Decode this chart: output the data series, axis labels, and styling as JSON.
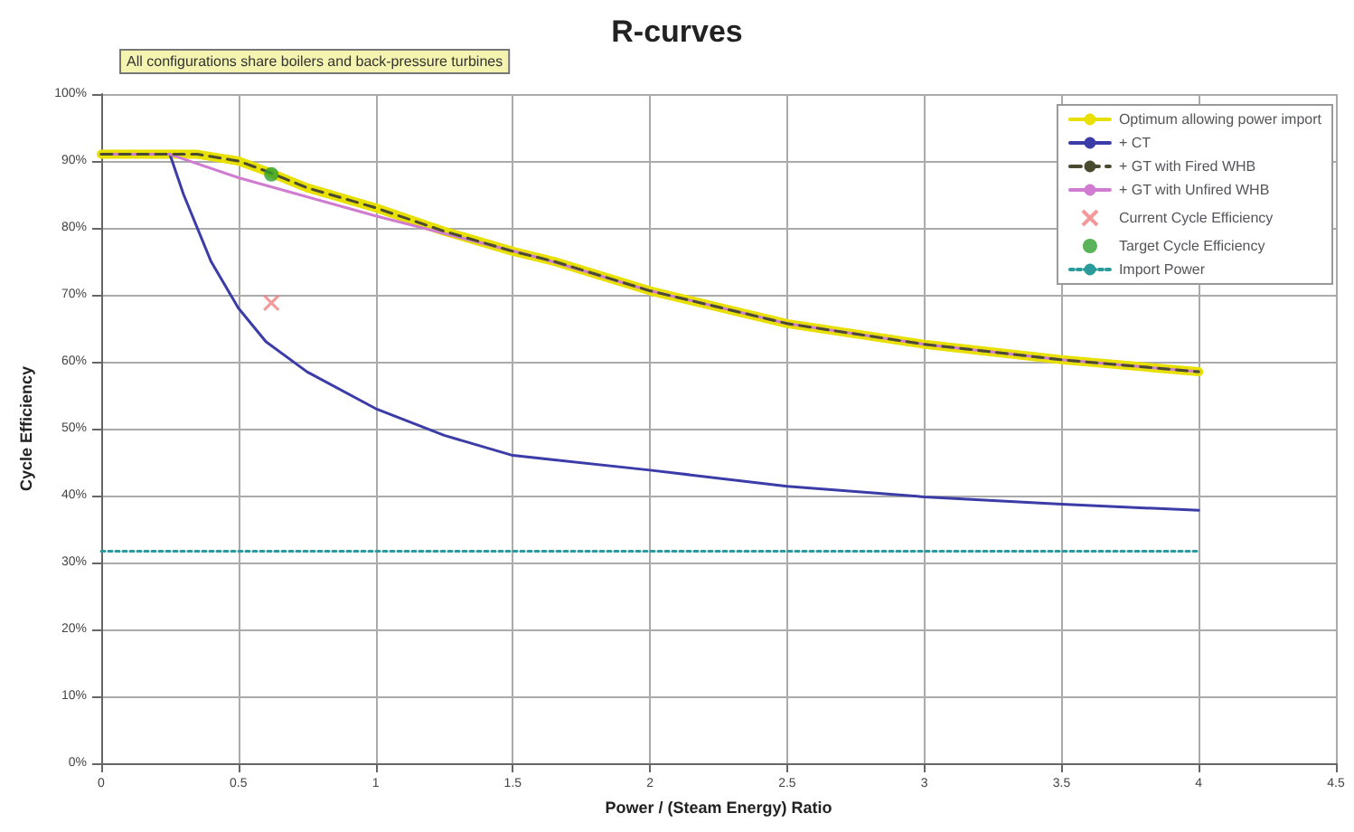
{
  "chart_data": {
    "type": "line",
    "title": "R-curves",
    "xlabel": "Power / (Steam Energy) Ratio",
    "ylabel": "Cycle Efficiency",
    "annotations": [
      "All configurations share boilers and back-pressure turbines"
    ],
    "xlim": [
      0,
      4.5
    ],
    "xticks": [
      0,
      0.5,
      1,
      1.5,
      2,
      2.5,
      3,
      3.5,
      4,
      4.5
    ],
    "ylim": [
      0,
      100
    ],
    "yticks": [
      {
        "value": 0,
        "label": "0%"
      },
      {
        "value": 10,
        "label": "10%"
      },
      {
        "value": 20,
        "label": "20%"
      },
      {
        "value": 30,
        "label": "30%"
      },
      {
        "value": 40,
        "label": "40%"
      },
      {
        "value": 50,
        "label": "50%"
      },
      {
        "value": 60,
        "label": "60%"
      },
      {
        "value": 70,
        "label": "70%"
      },
      {
        "value": 80,
        "label": "80%"
      },
      {
        "value": 90,
        "label": "90%"
      },
      {
        "value": 100,
        "label": "100%"
      }
    ],
    "grid": true,
    "legend": "top right",
    "marker": "none",
    "line_style": "solid",
    "series": [
      {
        "name": "Optimum allowing power import",
        "color": "#e8e000",
        "x": [
          0,
          0.25,
          0.35,
          0.5,
          0.6,
          0.75,
          1,
          1.25,
          1.5,
          1.65,
          2,
          2.5,
          3,
          3.5,
          4
        ],
        "values": [
          91,
          91,
          91,
          90,
          88.5,
          86,
          83,
          79.5,
          76.5,
          75,
          70.6,
          65.7,
          62.6,
          60.3,
          58.5
        ]
      },
      {
        "name": "+ CT",
        "color": "#3c3ca8",
        "x": [
          0,
          0.25,
          0.3,
          0.4,
          0.5,
          0.6,
          0.75,
          1,
          1.25,
          1.5,
          2,
          2.5,
          3,
          3.5,
          4
        ],
        "values": [
          91,
          91,
          85,
          75,
          68,
          63,
          58.5,
          53,
          49,
          46,
          43.8,
          41.4,
          39.8,
          38.7,
          37.8
        ]
      },
      {
        "name": "+ GT with Fired WHB",
        "color": "#4a4a30",
        "line_style": "dashed",
        "x": [
          0,
          0.25,
          0.35,
          0.5,
          0.6,
          0.75,
          1,
          1.25,
          1.5,
          1.65,
          2,
          2.5,
          3,
          3.5,
          4
        ],
        "values": [
          91,
          91,
          91,
          90,
          88.5,
          86,
          83,
          79.5,
          76.5,
          75,
          70.6,
          65.7,
          62.6,
          60.3,
          58.5
        ]
      },
      {
        "name": "+ GT with Unfired WHB",
        "color": "#d07cd0",
        "x": [
          0,
          0.25,
          0.5,
          1,
          1.6,
          2,
          2.5,
          3,
          3.5,
          4
        ],
        "values": [
          91,
          91,
          87.5,
          81.8,
          75.5,
          70.6,
          65.7,
          62.6,
          60.3,
          58.5
        ]
      },
      {
        "name": "Current Cycle Efficiency",
        "type": "scatter",
        "marker": "cross",
        "color": "#f08080",
        "x": [
          0.62
        ],
        "values": [
          68.8
        ]
      },
      {
        "name": "Target Cycle Efficiency",
        "type": "scatter",
        "marker": "circle",
        "color": "#30a030",
        "x": [
          0.62
        ],
        "values": [
          88
        ]
      },
      {
        "name": "Import Power",
        "color": "#2a9a9a",
        "line_style": "dotted",
        "x": [
          0,
          4
        ],
        "values": [
          31.7,
          31.7
        ]
      }
    ]
  }
}
